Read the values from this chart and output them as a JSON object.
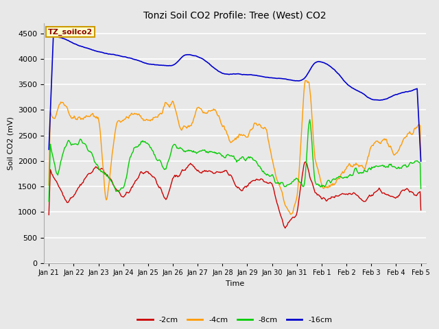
{
  "title": "Tonzi Soil CO2 Profile: Tree (West) CO2",
  "xlabel": "Time",
  "ylabel": "Soil CO2 (mV)",
  "ylim": [
    0,
    4700
  ],
  "yticks": [
    0,
    500,
    1000,
    1500,
    2000,
    2500,
    3000,
    3500,
    4000,
    4500
  ],
  "background_color": "#e8e8e8",
  "plot_bg_color": "#e8e8e8",
  "grid_color": "#ffffff",
  "legend_label": "TZ_soilco2",
  "legend_bg": "#ffffcc",
  "legend_edge": "#cc9900",
  "series": {
    "-2cm": {
      "color": "#cc0000",
      "lw": 1.0
    },
    "-4cm": {
      "color": "#ff9900",
      "lw": 1.0
    },
    "-8cm": {
      "color": "#00cc00",
      "lw": 1.0
    },
    "-16cm": {
      "color": "#0000cc",
      "lw": 1.2
    }
  },
  "x_tick_labels": [
    "Jan 21",
    "Jan 22",
    "Jan 23",
    "Jan 24",
    "Jan 25",
    "Jan 26",
    "Jan 27",
    "Jan 28",
    "Jan 29",
    "Jan 30",
    "Jan 31",
    "Feb 1",
    "Feb 2",
    "Feb 3",
    "Feb 4",
    "Feb 5"
  ],
  "n_points": 500
}
